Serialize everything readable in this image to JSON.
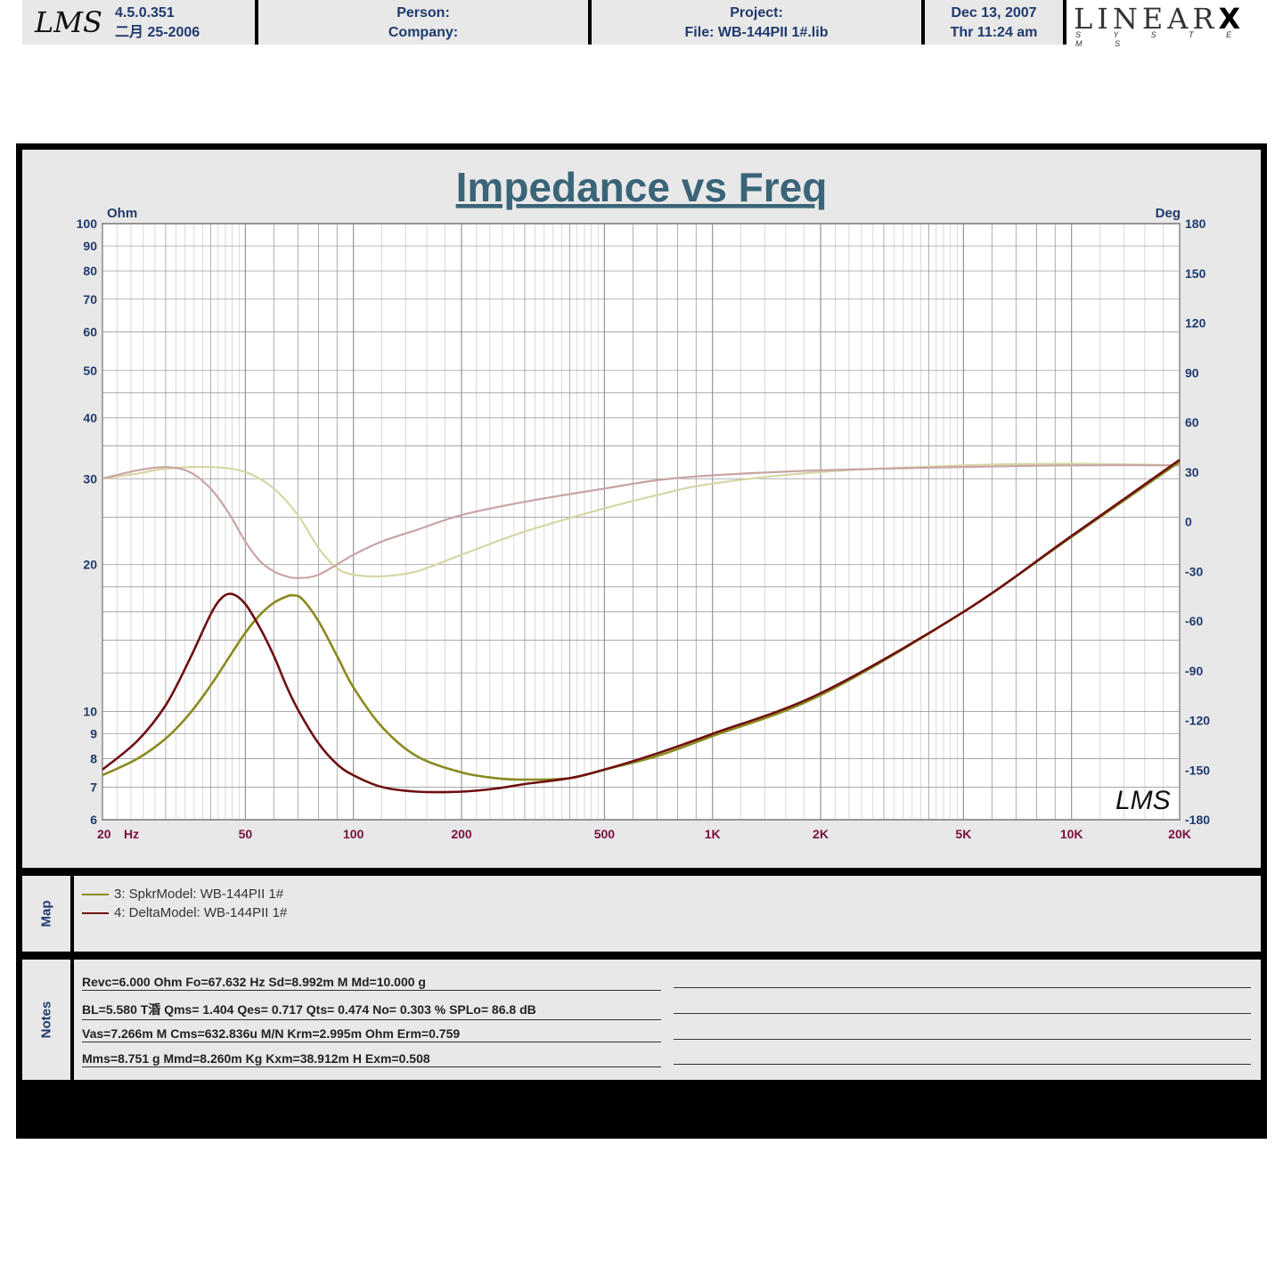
{
  "chart_data": {
    "type": "line",
    "title": "Impedance vs Freq",
    "y_left_unit": "Ohm",
    "y_right_unit": "Deg",
    "x_scale": "log",
    "x_unit_label": "Hz",
    "xlim": [
      20,
      20000
    ],
    "ylim_left": [
      6,
      100
    ],
    "y_left_scale": "log",
    "ylim_right": [
      -180,
      180
    ],
    "x_tick_labels": [
      {
        "value": 20,
        "label": "20"
      },
      {
        "value": 50,
        "label": "50"
      },
      {
        "value": 100,
        "label": "100"
      },
      {
        "value": 200,
        "label": "200"
      },
      {
        "value": 500,
        "label": "500"
      },
      {
        "value": 1000,
        "label": "1K"
      },
      {
        "value": 2000,
        "label": "2K"
      },
      {
        "value": 5000,
        "label": "5K"
      },
      {
        "value": 10000,
        "label": "10K"
      },
      {
        "value": 20000,
        "label": "20K"
      }
    ],
    "y_left_ticks": [
      100,
      90,
      80,
      70,
      60,
      50,
      40,
      30,
      20,
      10,
      9,
      8,
      7,
      6
    ],
    "y_right_ticks": [
      180,
      150,
      120,
      90,
      60,
      30,
      0,
      -30,
      -60,
      -90,
      -120,
      -150,
      -180
    ],
    "grid": true,
    "series": [
      {
        "name": "3: SpkrModel: WB-144PII  1#",
        "color": "#8a8a1e",
        "axis": "left",
        "x": [
          20,
          25,
          30,
          35,
          40,
          45,
          50,
          55,
          60,
          65,
          68,
          72,
          80,
          90,
          100,
          120,
          150,
          200,
          250,
          300,
          400,
          500,
          700,
          1000,
          2000,
          5000,
          10000,
          20000
        ],
        "y": [
          7.4,
          8.0,
          8.8,
          9.9,
          11.3,
          12.9,
          14.5,
          15.8,
          16.7,
          17.2,
          17.3,
          17.0,
          15.3,
          13.0,
          11.2,
          9.3,
          8.1,
          7.5,
          7.3,
          7.25,
          7.3,
          7.6,
          8.1,
          8.9,
          10.8,
          16.0,
          22.8,
          32.5
        ]
      },
      {
        "name": "4: DeltaModel: WB-144PII  1#",
        "color": "#6e0f0f",
        "axis": "left",
        "x": [
          20,
          25,
          30,
          35,
          40,
          43,
          46,
          50,
          55,
          60,
          65,
          70,
          80,
          90,
          100,
          120,
          150,
          200,
          250,
          300,
          400,
          500,
          700,
          1000,
          2000,
          5000,
          10000,
          20000
        ],
        "y": [
          7.6,
          8.7,
          10.3,
          12.8,
          15.8,
          17.1,
          17.4,
          16.6,
          14.8,
          13.0,
          11.3,
          10.1,
          8.6,
          7.8,
          7.4,
          7.0,
          6.85,
          6.85,
          6.95,
          7.1,
          7.3,
          7.6,
          8.2,
          9.0,
          10.9,
          16.0,
          22.9,
          32.8
        ]
      },
      {
        "name": "3: SpkrModel: WB-144PII  1#",
        "legend": false,
        "color": "#d6d6a4",
        "axis": "right",
        "x": [
          20,
          25,
          30,
          40,
          50,
          60,
          70,
          80,
          90,
          100,
          120,
          150,
          200,
          300,
          500,
          700,
          1000,
          2000,
          5000,
          10000,
          20000
        ],
        "y": [
          26,
          29,
          32,
          33,
          30,
          20,
          4,
          -16,
          -28,
          -32,
          -33,
          -30,
          -20,
          -6,
          8,
          16,
          23,
          30,
          34,
          35,
          34
        ]
      },
      {
        "name": "4: DeltaModel: WB-144PII  1#",
        "legend": false,
        "color": "#c9a4a4",
        "axis": "right",
        "x": [
          20,
          25,
          30,
          35,
          40,
          45,
          50,
          55,
          60,
          65,
          70,
          80,
          100,
          120,
          150,
          200,
          300,
          500,
          700,
          1000,
          2000,
          5000,
          10000,
          20000
        ],
        "y": [
          26,
          31,
          33,
          30,
          20,
          5,
          -12,
          -24,
          -30,
          -33,
          -34,
          -32,
          -20,
          -12,
          -5,
          4,
          12,
          20,
          25,
          28,
          31,
          33,
          34,
          34
        ]
      }
    ],
    "watermark_logo": "LMS"
  },
  "map": {
    "label": "Map",
    "entries": [
      {
        "text": "3: SpkrModel: WB-144PII  1#",
        "color": "#8a8a1e"
      },
      {
        "text": "4: DeltaModel: WB-144PII  1#",
        "color": "#6e0f0f"
      }
    ]
  },
  "notes": {
    "label": "Notes",
    "lines": [
      "Revc=6.000 Ohm  Fo=67.632 Hz  Sd=8.992m M    Md=10.000 g",
      "BL=5.580 T涽  Qms= 1.404  Qes= 0.717  Qts= 0.474  No= 0.303 %  SPLo= 86.8 dB",
      "Vas=7.266m M     Cms=632.836u M/N  Krm=2.995m Ohm  Erm=0.759",
      "Mms=8.751 g  Mmd=8.260m Kg  Kxm=38.912m H  Exm=0.508"
    ]
  },
  "footer": {
    "logo": "LMS",
    "version": "4.5.0.351",
    "build_date": "二月 25-2006",
    "person_label": "Person:",
    "company_label": "Company:",
    "project_label": "Project:",
    "file_label": "File: WB-144PII 1#.lib",
    "date": "Dec 13, 2007",
    "time": "Thr 11:24 am",
    "brand": "LINEAR",
    "brand_x": "X",
    "brand_sub": "S Y S T E M S"
  },
  "colors": {
    "grid": "#8c8c8c",
    "axis_text": "#1f3a6e",
    "x_axis_text": "#7a1040",
    "title": "#3a6478"
  }
}
